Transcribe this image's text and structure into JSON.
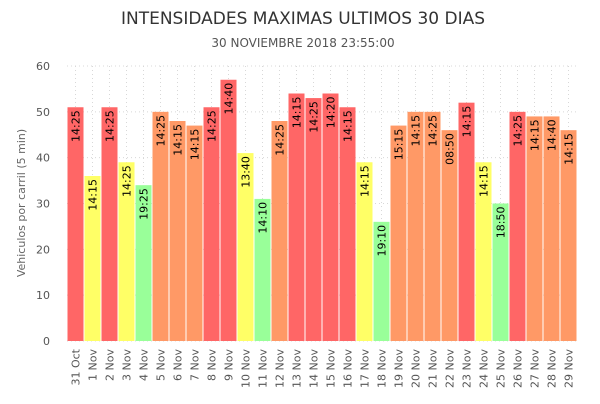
{
  "chart_data": {
    "type": "bar",
    "title": "INTENSIDADES MAXIMAS ULTIMOS 30 DIAS",
    "subtitle": "30 NOVIEMBRE 2018 23:55:00",
    "ylabel": "Vehiculos por carril (5 min)",
    "xlabel": "",
    "ylim": [
      0,
      60
    ],
    "yticks": [
      0,
      10,
      20,
      30,
      40,
      50,
      60
    ],
    "grid": true,
    "categories": [
      "31 Oct",
      "1 Nov",
      "2 Nov",
      "3 Nov",
      "4 Nov",
      "5 Nov",
      "6 Nov",
      "7 Nov",
      "8 Nov",
      "9 Nov",
      "10 Nov",
      "11 Nov",
      "12 Nov",
      "13 Nov",
      "14 Nov",
      "15 Nov",
      "16 Nov",
      "17 Nov",
      "18 Nov",
      "19 Nov",
      "20 Nov",
      "21 Nov",
      "22 Nov",
      "23 Nov",
      "24 Nov",
      "25 Nov",
      "26 Nov",
      "27 Nov",
      "28 Nov",
      "29 Nov"
    ],
    "values": [
      51,
      36,
      51,
      39,
      34,
      50,
      48,
      47,
      51,
      57,
      41,
      31,
      48,
      54,
      53,
      54,
      51,
      39,
      26,
      47,
      50,
      50,
      46,
      52,
      39,
      30,
      50,
      49,
      49,
      46
    ],
    "time_labels": [
      "14:25",
      "14:15",
      "14:25",
      "14:25",
      "19:25",
      "14:25",
      "14:15",
      "14:15",
      "14:25",
      "14:40",
      "13:40",
      "14:10",
      "14:25",
      "14:15",
      "14:25",
      "14:20",
      "14:15",
      "14:15",
      "19:10",
      "15:15",
      "14:15",
      "14:25",
      "08:50",
      "14:15",
      "14:15",
      "18:50",
      "14:25",
      "14:15",
      "14:40",
      "14:15"
    ],
    "bar_colors": [
      "#ff6666",
      "#ffff66",
      "#ff6666",
      "#ffff66",
      "#99ff99",
      "#ff9966",
      "#ff9966",
      "#ff9966",
      "#ff6666",
      "#ff6666",
      "#ffff66",
      "#99ff99",
      "#ff9966",
      "#ff6666",
      "#ff6666",
      "#ff6666",
      "#ff6666",
      "#ffff66",
      "#99ff99",
      "#ff9966",
      "#ff9966",
      "#ff9966",
      "#ff9966",
      "#ff6666",
      "#ffff66",
      "#99ff99",
      "#ff6666",
      "#ff9966",
      "#ff9966",
      "#ff9966"
    ]
  }
}
